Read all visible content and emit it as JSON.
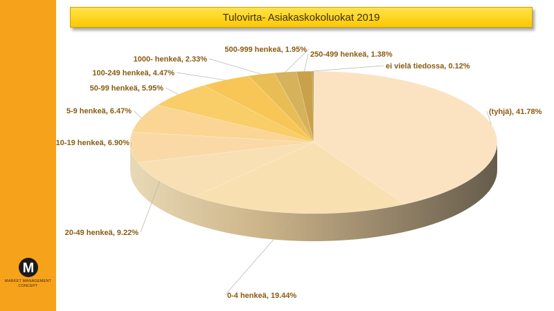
{
  "title": "Tulovirta- Asiakaskokoluokat 2019",
  "logo": {
    "mark": "M",
    "text": "MARKET MANAGEMENT CONCEPT"
  },
  "chart_data": {
    "type": "pie",
    "title": "Tulovirta- Asiakaskokoluokat 2019",
    "slices": [
      {
        "label": "(tyhjä)",
        "value": 41.78,
        "display": "(tyhjä), 41.78%",
        "color": "#fbe3c2"
      },
      {
        "label": "0-4 henkeä",
        "value": 19.44,
        "display": "0-4 henkeä, 19.44%",
        "color": "#f8e0b0"
      },
      {
        "label": "20-49 henkeä",
        "value": 9.22,
        "display": "20-49 henkeä, 9.22%",
        "color": "#f8dfb4"
      },
      {
        "label": "10-19 henkeä",
        "value": 6.9,
        "display": "10-19 henkeä, 6.90%",
        "color": "#fbd9a6"
      },
      {
        "label": "5-9 henkeä",
        "value": 6.47,
        "display": "5-9 henkeä, 6.47%",
        "color": "#fad594"
      },
      {
        "label": "50-99 henkeä",
        "value": 5.95,
        "display": "50-99 henkeä, 5.95%",
        "color": "#f9cd67"
      },
      {
        "label": "100-249 henkeä",
        "value": 4.47,
        "display": "100-249 henkeä, 4.47%",
        "color": "#f7c656"
      },
      {
        "label": "1000- henkeä",
        "value": 2.33,
        "display": "1000- henkeä, 2.33%",
        "color": "#e9bd56"
      },
      {
        "label": "500-999 henkeä",
        "value": 1.95,
        "display": "500-999 henkeä, 1.95%",
        "color": "#d6b25c"
      },
      {
        "label": "250-499 henkeä",
        "value": 1.38,
        "display": "250-499 henkeä, 1.38%",
        "color": "#c9a14a"
      },
      {
        "label": "ei vielä tiedossa",
        "value": 0.12,
        "display": "ei vielä tiedossa, 0.12%",
        "color": "#b8923c"
      }
    ],
    "legend": "none",
    "style": "3d"
  }
}
